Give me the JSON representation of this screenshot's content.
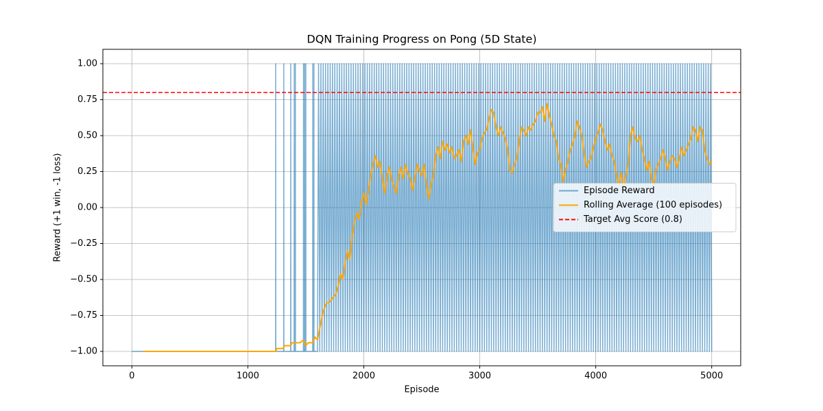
{
  "chart_data": {
    "type": "line",
    "title": "DQN Training Progress on Pong (5D State)",
    "xlabel": "Episode",
    "ylabel": "Reward (+1 win, -1 loss)",
    "xlim": [
      -250,
      5250
    ],
    "ylim": [
      -1.1,
      1.1
    ],
    "xticks": [
      0,
      1000,
      2000,
      3000,
      4000,
      5000
    ],
    "yticks": [
      {
        "value": 1,
        "label": "1.00"
      },
      {
        "value": 0.75,
        "label": "0.75"
      },
      {
        "value": 0.5,
        "label": "0.50"
      },
      {
        "value": 0.25,
        "label": "0.25"
      },
      {
        "value": 0,
        "label": "0.00"
      },
      {
        "value": -0.25,
        "label": "−0.25"
      },
      {
        "value": -0.5,
        "label": "−0.50"
      },
      {
        "value": -0.75,
        "label": "−0.75"
      },
      {
        "value": -1,
        "label": "−1.00"
      }
    ],
    "grid": true,
    "legend": "center right",
    "series": [
      {
        "name": "Episode Reward",
        "color": "#1f77b4",
        "opacity": 0.6,
        "x": [
          0,
          1239,
          1240,
          1241,
          1309,
          1310,
          1311,
          1369,
          1370,
          1371,
          1399,
          1400,
          1401,
          1409,
          1410,
          1411,
          1479,
          1480,
          1481,
          1489,
          1490,
          1491,
          1499,
          1500,
          1501,
          1559,
          1560,
          1561,
          1569,
          1570,
          1571,
          1599,
          1600,
          1610,
          1620,
          1630,
          1640,
          1650,
          1660,
          1670,
          1680,
          1690,
          1700,
          1710,
          1720,
          1730,
          1740,
          1750,
          1760,
          1770,
          1780,
          1790,
          1800,
          1810,
          1820,
          1830,
          1840,
          1850,
          1860,
          1870,
          1880,
          1890,
          1900,
          1910,
          1920,
          1930,
          1940,
          1950,
          1960,
          1970,
          1980,
          1990,
          2000,
          2010,
          2020,
          2030,
          2040,
          2050,
          2060,
          2070,
          2080,
          2090,
          2100,
          2110,
          2120,
          2130,
          2140,
          2150,
          2160,
          2170,
          2180,
          2190,
          2200,
          2210,
          2220,
          2230,
          2240,
          2250,
          2260,
          2270,
          2280,
          2290,
          2300,
          2310,
          2320,
          2330,
          2340,
          2350,
          2360,
          2370,
          2380,
          2390,
          2400,
          2410,
          2420,
          2430,
          2440,
          2450,
          2460,
          2470,
          2480,
          2490,
          2500,
          2510,
          2520,
          2530,
          2540,
          2550,
          2560,
          2570,
          2580,
          2590,
          2600,
          2610,
          2620,
          2630,
          2640,
          2650,
          2660,
          2670,
          2680,
          2690,
          2700,
          2710,
          2720,
          2730,
          2740,
          2750,
          2760,
          2770,
          2780,
          2790,
          2800,
          2810,
          2820,
          2830,
          2840,
          2850,
          2860,
          2870,
          2880,
          2890,
          2900,
          2910,
          2920,
          2930,
          2940,
          2950,
          2960,
          2970,
          2980,
          2990,
          3000,
          3010,
          3020,
          3030,
          3040,
          3050,
          3060,
          3070,
          3080,
          3090,
          3100,
          3110,
          3120,
          3130,
          3140,
          3150,
          3160,
          3170,
          3180,
          3190,
          3200,
          3210,
          3220,
          3230,
          3240,
          3250,
          3260,
          3270,
          3280,
          3290,
          3300,
          3310,
          3320,
          3330,
          3340,
          3350,
          3360,
          3370,
          3380,
          3390,
          3400,
          3410,
          3420,
          3430,
          3440,
          3450,
          3460,
          3470,
          3480,
          3490,
          3500,
          3510,
          3520,
          3530,
          3540,
          3550,
          3560,
          3570,
          3580,
          3590,
          3600,
          3610,
          3620,
          3630,
          3640,
          3650,
          3660,
          3670,
          3680,
          3690,
          3700,
          3710,
          3720,
          3730,
          3740,
          3750,
          3760,
          3770,
          3780,
          3790,
          3800,
          3810,
          3820,
          3830,
          3840,
          3850,
          3860,
          3870,
          3880,
          3890,
          3900,
          3910,
          3920,
          3930,
          3940,
          3950,
          3960,
          3970,
          3980,
          3990,
          4000,
          4010,
          4020,
          4030,
          4040,
          4050,
          4060,
          4070,
          4080,
          4090,
          4100,
          4110,
          4120,
          4130,
          4140,
          4150,
          4160,
          4170,
          4180,
          4190,
          4200,
          4210,
          4220,
          4230,
          4240,
          4250,
          4260,
          4270,
          4280,
          4290,
          4300,
          4310,
          4320,
          4330,
          4340,
          4350,
          4360,
          4370,
          4380,
          4390,
          4400,
          4410,
          4420,
          4430,
          4440,
          4450,
          4460,
          4470,
          4480,
          4490,
          4500,
          4510,
          4520,
          4530,
          4540,
          4550,
          4560,
          4570,
          4580,
          4590,
          4600,
          4610,
          4620,
          4630,
          4640,
          4650,
          4660,
          4670,
          4680,
          4690,
          4700,
          4710,
          4720,
          4730,
          4740,
          4750,
          4760,
          4770,
          4780,
          4790,
          4800,
          4810,
          4820,
          4830,
          4840,
          4850,
          4860,
          4870,
          4880,
          4890,
          4900,
          4910,
          4920,
          4930,
          4940,
          4950,
          4960,
          4970,
          4980,
          4990,
          5000
        ],
        "values": [
          -1,
          -1,
          1,
          -1,
          -1,
          1,
          -1,
          -1,
          1,
          -1,
          -1,
          1,
          -1,
          -1,
          1,
          -1,
          -1,
          1,
          -1,
          -1,
          1,
          -1,
          -1,
          1,
          -1,
          -1,
          1,
          -1,
          -1,
          1,
          -1,
          -1,
          -1,
          1,
          -1,
          1,
          -1,
          1,
          -1,
          1,
          -1,
          1,
          -1,
          1,
          -1,
          1,
          -1,
          1,
          -1,
          1,
          -1,
          1,
          -1,
          1,
          -1,
          1,
          -1,
          1,
          -1,
          1,
          -1,
          1,
          -1,
          1,
          -1,
          1,
          -1,
          1,
          -1,
          1,
          -1,
          1,
          -1,
          1,
          -1,
          1,
          -1,
          1,
          -1,
          1,
          -1,
          1,
          -1,
          1,
          -1,
          1,
          -1,
          1,
          -1,
          1,
          -1,
          1,
          -1,
          1,
          -1,
          1,
          -1,
          1,
          -1,
          1,
          -1,
          1,
          -1,
          1,
          -1,
          1,
          -1,
          1,
          -1,
          1,
          -1,
          1,
          -1,
          1,
          -1,
          1,
          -1,
          1,
          -1,
          1,
          -1,
          1,
          -1,
          1,
          -1,
          1,
          -1,
          1,
          -1,
          1,
          -1,
          1,
          -1,
          1,
          -1,
          1,
          -1,
          1,
          -1,
          1,
          -1,
          1,
          -1,
          1,
          -1,
          1,
          -1,
          1,
          -1,
          1,
          -1,
          1,
          -1,
          1,
          -1,
          1,
          -1,
          1,
          -1,
          1,
          -1,
          1,
          -1,
          1,
          -1,
          1,
          -1,
          1,
          -1,
          1,
          -1,
          1,
          -1,
          1,
          -1,
          1,
          -1,
          1,
          -1,
          1,
          -1,
          1,
          -1,
          1,
          -1,
          1,
          -1,
          1,
          -1,
          1,
          -1,
          1,
          -1,
          1,
          -1,
          1,
          -1,
          1,
          -1,
          1,
          -1,
          1,
          -1,
          1,
          -1,
          1,
          -1,
          1,
          -1,
          1,
          -1,
          1,
          -1,
          1,
          -1,
          1,
          -1,
          1,
          -1,
          1,
          -1,
          1,
          -1,
          1,
          -1,
          1,
          -1,
          1,
          -1,
          1,
          -1,
          1,
          -1,
          1,
          -1,
          1,
          -1,
          1,
          -1,
          1,
          -1,
          1,
          -1,
          1,
          -1,
          1,
          -1,
          1,
          -1,
          1,
          -1,
          1,
          -1,
          1,
          -1,
          1,
          -1,
          1,
          -1,
          1,
          -1,
          1,
          -1,
          1,
          -1,
          1,
          -1,
          1,
          -1,
          1,
          -1,
          1,
          -1,
          1,
          -1,
          1,
          -1,
          1,
          -1,
          1,
          -1,
          1,
          -1,
          1,
          -1,
          1,
          -1,
          1,
          -1,
          1,
          -1,
          1,
          -1,
          1,
          -1,
          1,
          -1,
          1,
          -1,
          1,
          -1,
          1,
          -1,
          1,
          -1,
          1,
          -1,
          1,
          -1,
          1,
          -1,
          1,
          -1,
          1,
          -1,
          1,
          -1,
          1,
          -1,
          1,
          -1,
          1,
          -1,
          1,
          -1,
          1,
          -1,
          1,
          -1,
          1,
          -1,
          1,
          -1,
          1,
          -1,
          1,
          -1,
          1,
          -1,
          1,
          -1,
          1,
          -1,
          1,
          -1,
          1,
          -1,
          1,
          -1,
          1,
          -1,
          1,
          -1,
          1,
          -1,
          1,
          -1,
          1,
          -1,
          1,
          -1,
          1,
          -1,
          1,
          -1,
          1,
          -1,
          1,
          -1,
          1,
          -1,
          1,
          -1
        ]
      },
      {
        "name": "Rolling Average (100 episodes)",
        "color": "#ffa500",
        "opacity": 1,
        "x": [
          100,
          1240,
          1250,
          1300,
          1320,
          1370,
          1380,
          1450,
          1480,
          1500,
          1520,
          1560,
          1580,
          1600,
          1620,
          1650,
          1680,
          1700,
          1720,
          1740,
          1760,
          1780,
          1800,
          1820,
          1840,
          1860,
          1880,
          1900,
          1920,
          1940,
          1960,
          1980,
          2000,
          2020,
          2040,
          2060,
          2080,
          2100,
          2120,
          2140,
          2160,
          2180,
          2200,
          2220,
          2240,
          2260,
          2280,
          2300,
          2320,
          2340,
          2360,
          2380,
          2400,
          2420,
          2440,
          2460,
          2480,
          2500,
          2520,
          2540,
          2560,
          2580,
          2600,
          2620,
          2640,
          2660,
          2680,
          2700,
          2720,
          2740,
          2760,
          2780,
          2800,
          2820,
          2840,
          2860,
          2880,
          2900,
          2920,
          2940,
          2960,
          2980,
          3000,
          3020,
          3040,
          3060,
          3080,
          3100,
          3120,
          3140,
          3160,
          3180,
          3200,
          3220,
          3240,
          3260,
          3280,
          3300,
          3320,
          3340,
          3360,
          3380,
          3400,
          3420,
          3440,
          3460,
          3480,
          3500,
          3520,
          3540,
          3560,
          3580,
          3600,
          3620,
          3640,
          3660,
          3680,
          3700,
          3720,
          3740,
          3760,
          3780,
          3800,
          3820,
          3840,
          3860,
          3880,
          3900,
          3920,
          3940,
          3960,
          3980,
          4000,
          4020,
          4040,
          4060,
          4080,
          4100,
          4120,
          4140,
          4160,
          4180,
          4200,
          4220,
          4240,
          4260,
          4280,
          4300,
          4320,
          4340,
          4360,
          4380,
          4400,
          4420,
          4440,
          4460,
          4480,
          4500,
          4520,
          4540,
          4560,
          4580,
          4600,
          4620,
          4640,
          4660,
          4680,
          4700,
          4720,
          4740,
          4760,
          4780,
          4800,
          4820,
          4840,
          4860,
          4880,
          4900,
          4920,
          4940,
          4960,
          4980,
          5000
        ],
        "values": [
          -1,
          -1,
          -0.98,
          -0.98,
          -0.96,
          -0.96,
          -0.94,
          -0.94,
          -0.92,
          -0.96,
          -0.94,
          -0.94,
          -0.9,
          -0.92,
          -0.84,
          -0.72,
          -0.66,
          -0.66,
          -0.64,
          -0.62,
          -0.6,
          -0.54,
          -0.46,
          -0.5,
          -0.38,
          -0.3,
          -0.36,
          -0.2,
          -0.1,
          -0.04,
          -0.08,
          0.04,
          0.1,
          0.02,
          0.12,
          0.22,
          0.3,
          0.36,
          0.28,
          0.32,
          0.2,
          0.1,
          0.22,
          0.28,
          0.2,
          0.14,
          0.1,
          0.22,
          0.28,
          0.2,
          0.3,
          0.24,
          0.2,
          0.12,
          0.2,
          0.3,
          0.26,
          0.22,
          0.3,
          0.16,
          0.06,
          0.16,
          0.22,
          0.36,
          0.42,
          0.34,
          0.46,
          0.4,
          0.44,
          0.38,
          0.42,
          0.34,
          0.36,
          0.4,
          0.32,
          0.46,
          0.5,
          0.44,
          0.54,
          0.42,
          0.3,
          0.38,
          0.4,
          0.48,
          0.52,
          0.54,
          0.62,
          0.68,
          0.66,
          0.56,
          0.5,
          0.56,
          0.52,
          0.48,
          0.4,
          0.26,
          0.24,
          0.3,
          0.34,
          0.46,
          0.56,
          0.54,
          0.5,
          0.56,
          0.54,
          0.58,
          0.6,
          0.66,
          0.66,
          0.7,
          0.6,
          0.72,
          0.64,
          0.58,
          0.5,
          0.46,
          0.34,
          0.3,
          0.18,
          0.26,
          0.32,
          0.4,
          0.44,
          0.5,
          0.6,
          0.56,
          0.5,
          0.38,
          0.28,
          0.32,
          0.34,
          0.42,
          0.48,
          0.52,
          0.58,
          0.54,
          0.46,
          0.4,
          0.44,
          0.36,
          0.32,
          0.22,
          0.16,
          0.24,
          0.14,
          0.22,
          0.3,
          0.5,
          0.56,
          0.48,
          0.46,
          0.5,
          0.4,
          0.34,
          0.26,
          0.32,
          0.2,
          0.16,
          0.26,
          0.3,
          0.34,
          0.4,
          0.34,
          0.26,
          0.32,
          0.36,
          0.34,
          0.28,
          0.34,
          0.42,
          0.36,
          0.4,
          0.44,
          0.48,
          0.56,
          0.54,
          0.46,
          0.56,
          0.54,
          0.4,
          0.34,
          0.3,
          0.32
        ]
      },
      {
        "name": "Target Avg Score (0.8)",
        "color": "#ff0000",
        "type": "hline",
        "value": 0.8,
        "linestyle": "dashed"
      }
    ]
  }
}
